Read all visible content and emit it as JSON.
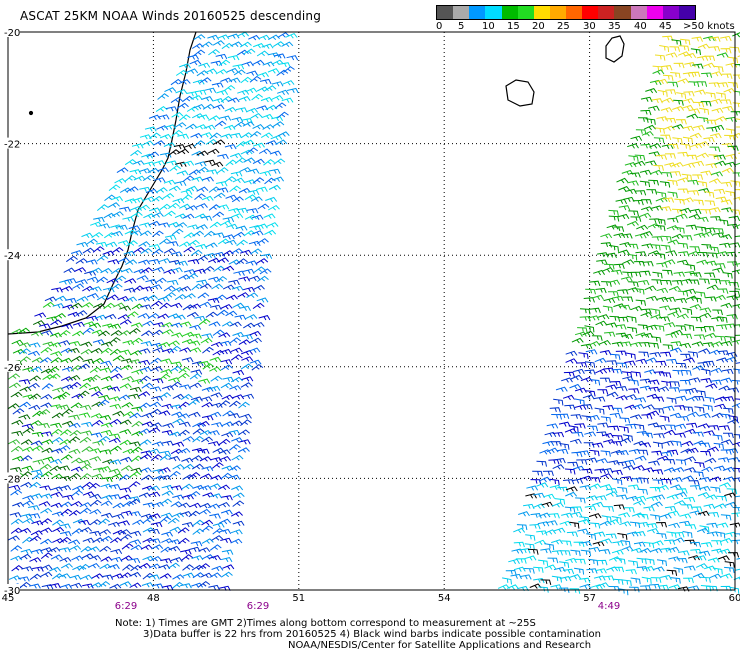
{
  "title": "ASCAT 25KM NOAA Winds 20160525 descending",
  "scale": {
    "colors": [
      "#555555",
      "#aaaaaa",
      "#0099ff",
      "#00ddff",
      "#00bb00",
      "#22dd22",
      "#ffdd00",
      "#ffaa00",
      "#ff6600",
      "#ff0000",
      "#cc2222",
      "#884422",
      "#cc77bb",
      "#ee00ee",
      "#8800cc",
      "#4400aa"
    ],
    "labels": [
      "0",
      "5",
      "10",
      "15",
      "20",
      "25",
      "30",
      "35",
      "40",
      "45",
      ">50 knots"
    ]
  },
  "map": {
    "lon_min": 45,
    "lon_max": 60,
    "lat_top": -20,
    "lat_bottom": -30,
    "lat_labels": [
      "-20",
      "-22",
      "-24",
      "-26",
      "-28",
      "-30"
    ],
    "lon_labels": [
      "45",
      "48",
      "51",
      "54",
      "57",
      "60"
    ],
    "time_labels": [
      "6:29",
      "6:29",
      "4:49"
    ]
  },
  "notes": {
    "line1": "Note: 1) Times are GMT 2)Times along bottom correspond to measurement at ~25S",
    "line2": "3)Data buffer is 22 hrs from 20160525 4) Black wind barbs indicate possible contamination",
    "line3": "NOAA/NESDIS/Center for Satellite Applications and Research"
  }
}
